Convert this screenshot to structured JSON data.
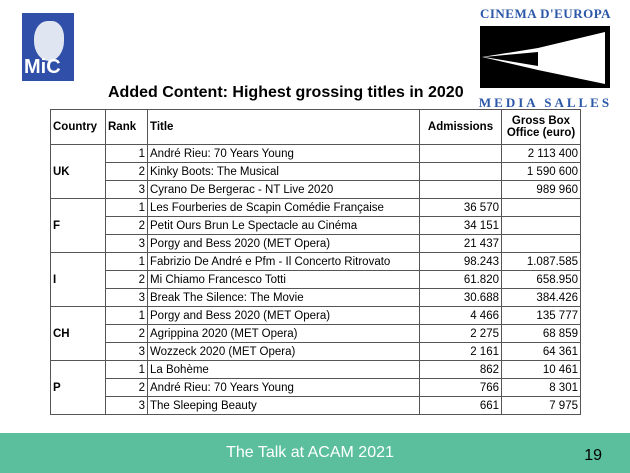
{
  "logos": {
    "mic": "MiC",
    "cinema": "CINEMA D'EUROPA",
    "media": "MEDIA SALLES"
  },
  "title": "Added Content: Highest grossing titles in 2020",
  "headers": [
    "Country",
    "Rank",
    "Title",
    "Admissions",
    "Gross Box Office (euro)"
  ],
  "groups": [
    {
      "country": "UK",
      "rows": [
        [
          "1",
          "André Rieu: 70 Years Young",
          "",
          "2 113 400"
        ],
        [
          "2",
          "Kinky Boots: The Musical",
          "",
          "1 590 600"
        ],
        [
          "3",
          "Cyrano De Bergerac - NT Live 2020",
          "",
          "989 960"
        ]
      ]
    },
    {
      "country": "F",
      "rows": [
        [
          "1",
          "Les Fourberies de Scapin Comédie Française",
          "36 570",
          ""
        ],
        [
          "2",
          "Petit Ours Brun Le Spectacle au Cinéma",
          "34 151",
          ""
        ],
        [
          "3",
          "Porgy and Bess 2020 (MET Opera)",
          "21 437",
          ""
        ]
      ]
    },
    {
      "country": "I",
      "rows": [
        [
          "1",
          "Fabrizio De André e Pfm - Il Concerto Ritrovato",
          "98.243",
          "1.087.585"
        ],
        [
          "2",
          "Mi Chiamo Francesco Totti",
          "61.820",
          "658.950"
        ],
        [
          "3",
          "Break The Silence: The Movie",
          "30.688",
          "384.426"
        ]
      ]
    },
    {
      "country": "CH",
      "rows": [
        [
          "1",
          "Porgy and Bess 2020 (MET Opera)",
          "4 466",
          "135 777"
        ],
        [
          "2",
          "Agrippina 2020 (MET Opera)",
          "2 275",
          "68 859"
        ],
        [
          "3",
          "Wozzeck 2020 (MET Opera)",
          "2 161",
          "64 361"
        ]
      ]
    },
    {
      "country": "P",
      "rows": [
        [
          "1",
          "La Bohème",
          "862",
          "10 461"
        ],
        [
          "2",
          "André Rieu: 70 Years Young",
          "766",
          "8 301"
        ],
        [
          "3",
          "The Sleeping Beauty",
          "661",
          "7 975"
        ]
      ]
    }
  ],
  "footer": {
    "text": "The Talk at ACAM 2021",
    "page": "19"
  }
}
